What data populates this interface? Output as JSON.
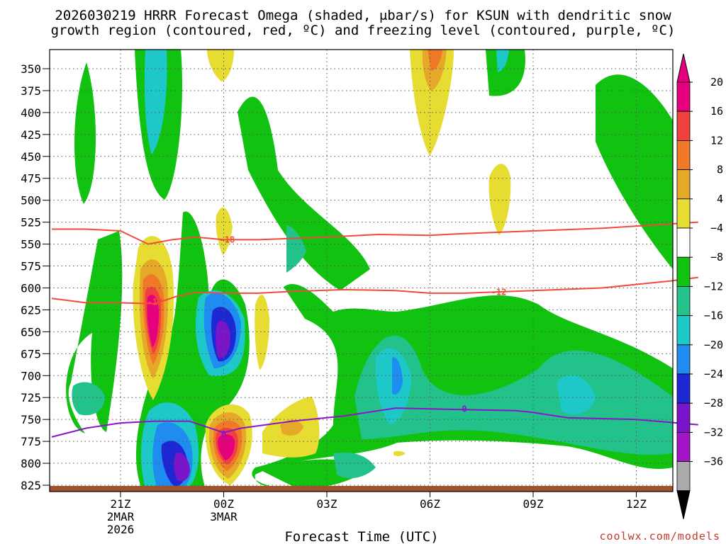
{
  "chart_data": {
    "type": "heatmap",
    "title_lines": [
      "2026030219 HRRR Forecast Omega (shaded, μbar/s) for KSUN with dendritic snow",
      "growth region (contoured, red, ºC) and freezing level (contoured, purple, ºC)"
    ],
    "xlabel": "Forecast Time (UTC)",
    "credit": "coolwx.com/models",
    "y_ticks": [
      350,
      375,
      400,
      425,
      450,
      475,
      500,
      525,
      550,
      575,
      600,
      625,
      650,
      675,
      700,
      725,
      750,
      775,
      800,
      825
    ],
    "x_ticks": [
      {
        "hour": 21,
        "lines": [
          "21Z",
          "2MAR",
          "2026"
        ]
      },
      {
        "hour": 24,
        "lines": [
          "00Z",
          "3MAR"
        ]
      },
      {
        "hour": 27,
        "lines": [
          "03Z"
        ]
      },
      {
        "hour": 30,
        "lines": [
          "06Z"
        ]
      },
      {
        "hour": 33,
        "lines": [
          "09Z"
        ]
      },
      {
        "hour": 36,
        "lines": [
          "12Z"
        ]
      }
    ],
    "colorbar": {
      "labels": [
        "20",
        "16",
        "12",
        "8",
        "4",
        "−4",
        "−8",
        "−12",
        "−16",
        "−20",
        "−24",
        "−28",
        "−32",
        "−36"
      ],
      "colors": [
        "#e6007e",
        "#f04040",
        "#f07828",
        "#e6a828",
        "#e6dc32",
        "#ffffff",
        "#11c211",
        "#22c28a",
        "#1ec8c8",
        "#1e8cf0",
        "#1e28d2",
        "#7a14c8",
        "#a514c8",
        "#aaaaaa"
      ],
      "top_color": "#e6007e",
      "bottom_color": "#000000"
    },
    "contours": [
      {
        "name": "dgz-minus18",
        "label": "-18",
        "color": "#f04b3c",
        "points": [
          [
            19.0,
            533
          ],
          [
            20.0,
            533
          ],
          [
            21.0,
            535
          ],
          [
            21.8,
            550
          ],
          [
            22.5,
            545
          ],
          [
            23.2,
            542
          ],
          [
            24.0,
            545
          ],
          [
            25.0,
            545
          ],
          [
            27.0,
            542
          ],
          [
            28.5,
            539
          ],
          [
            30.0,
            540
          ],
          [
            31.0,
            538
          ],
          [
            33.0,
            535
          ],
          [
            35.0,
            532
          ],
          [
            37.0,
            527
          ],
          [
            37.8,
            525
          ]
        ],
        "labels": [
          {
            "hour": 24.1,
            "hpa": 545
          }
        ]
      },
      {
        "name": "dgz-minus12",
        "label": "-12",
        "color": "#f04b3c",
        "points": [
          [
            19.0,
            612
          ],
          [
            20.0,
            617
          ],
          [
            21.0,
            617
          ],
          [
            22.0,
            618
          ],
          [
            22.6,
            610
          ],
          [
            23.2,
            605
          ],
          [
            24.0,
            606
          ],
          [
            25.0,
            606
          ],
          [
            26.0,
            604
          ],
          [
            27.5,
            602
          ],
          [
            29.0,
            603
          ],
          [
            30.0,
            606
          ],
          [
            31.0,
            606
          ],
          [
            33.0,
            603
          ],
          [
            35.0,
            600
          ],
          [
            37.0,
            592
          ],
          [
            37.8,
            588
          ]
        ],
        "labels": [
          {
            "hour": 22.0,
            "hpa": 616
          },
          {
            "hour": 32.0,
            "hpa": 605
          }
        ]
      },
      {
        "name": "freezing-level-0",
        "label": "0",
        "color": "#8c14c8",
        "points": [
          [
            19.0,
            770
          ],
          [
            20.0,
            760
          ],
          [
            21.0,
            754
          ],
          [
            22.0,
            752
          ],
          [
            23.0,
            752
          ],
          [
            24.0,
            765
          ],
          [
            24.5,
            760
          ],
          [
            26.0,
            752
          ],
          [
            27.5,
            746
          ],
          [
            29.0,
            737
          ],
          [
            30.0,
            738
          ],
          [
            32.5,
            740
          ],
          [
            33.0,
            742
          ],
          [
            34.0,
            748
          ],
          [
            36.0,
            750
          ],
          [
            37.8,
            756
          ]
        ],
        "labels": [
          {
            "hour": 24.0,
            "hpa": 767
          },
          {
            "hour": 31.0,
            "hpa": 738
          }
        ]
      }
    ],
    "omega_shading_note": "filled omega regions rendered as shapes"
  }
}
